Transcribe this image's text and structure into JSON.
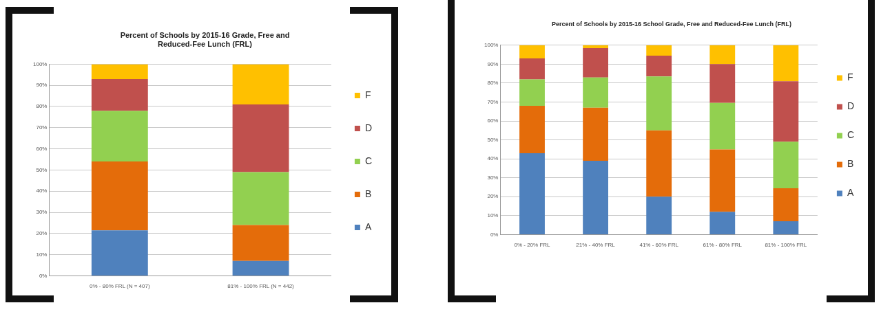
{
  "chart_data": [
    {
      "type": "bar",
      "title": "Percent of Schools by 2015-16 Grade, Free and Reduced-Fee Lunch (FRL)",
      "stacked": true,
      "categories": [
        "0% - 80% FRL (N = 407)",
        "81% - 100% FRL (N = 442)"
      ],
      "series": [
        {
          "name": "A",
          "color": "#4f81bd",
          "values": [
            21.5,
            7
          ]
        },
        {
          "name": "B",
          "color": "#e46c0a",
          "values": [
            32.5,
            17
          ]
        },
        {
          "name": "C",
          "color": "#92d050",
          "values": [
            24,
            25
          ]
        },
        {
          "name": "D",
          "color": "#c0504d",
          "values": [
            15,
            32
          ]
        },
        {
          "name": "F",
          "color": "#ffc000",
          "values": [
            7,
            19
          ]
        }
      ],
      "ylim": [
        0,
        100
      ],
      "yticks": [
        {
          "value": 0,
          "label": "0%"
        },
        {
          "value": 10,
          "label": "10%"
        },
        {
          "value": 20,
          "label": "20%"
        },
        {
          "value": 30,
          "label": "30%"
        },
        {
          "value": 40,
          "label": "40%"
        },
        {
          "value": 50,
          "label": "50%"
        },
        {
          "value": 60,
          "label": "60%"
        },
        {
          "value": 70,
          "label": "70%"
        },
        {
          "value": 80,
          "label": "80%"
        },
        {
          "value": 90,
          "label": "90%"
        },
        {
          "value": 100,
          "label": "100%"
        }
      ],
      "grid": "y",
      "legend": "right"
    },
    {
      "type": "bar",
      "title": "Percent of Schools by 2015-16 School Grade, Free and Reduced-Fee Lunch (FRL)",
      "stacked": true,
      "categories": [
        "0% - 20% FRL",
        "21% - 40% FRL",
        "41% - 60% FRL",
        "61% - 80% FRL",
        "81% - 100% FRL"
      ],
      "series": [
        {
          "name": "A",
          "color": "#4f81bd",
          "values": [
            43,
            39,
            20,
            12,
            7
          ]
        },
        {
          "name": "B",
          "color": "#e46c0a",
          "values": [
            25,
            28,
            35,
            33,
            17.5
          ]
        },
        {
          "name": "C",
          "color": "#92d050",
          "values": [
            14,
            16,
            28.5,
            24.5,
            24.5
          ]
        },
        {
          "name": "D",
          "color": "#c0504d",
          "values": [
            11,
            15.5,
            11,
            20.5,
            32
          ]
        },
        {
          "name": "F",
          "color": "#ffc000",
          "values": [
            7,
            1.5,
            5.5,
            10,
            19
          ]
        }
      ],
      "ylim": [
        0,
        100
      ],
      "yticks": [
        {
          "value": 0,
          "label": "0%"
        },
        {
          "value": 10,
          "label": "10%"
        },
        {
          "value": 20,
          "label": "20%"
        },
        {
          "value": 30,
          "label": "30%"
        },
        {
          "value": 40,
          "label": "40%"
        },
        {
          "value": 50,
          "label": "50%"
        },
        {
          "value": 60,
          "label": "60%"
        },
        {
          "value": 70,
          "label": "70%"
        },
        {
          "value": 80,
          "label": "80%"
        },
        {
          "value": 90,
          "label": "90%"
        },
        {
          "value": 100,
          "label": "100%"
        }
      ],
      "grid": "y",
      "legend": "right"
    }
  ]
}
